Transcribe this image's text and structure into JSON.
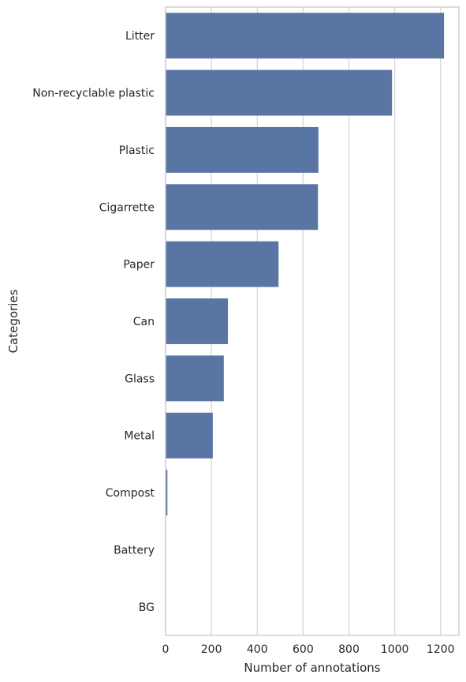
{
  "chart_data": {
    "type": "bar",
    "orientation": "horizontal",
    "title": "",
    "xlabel": "Number of annotations",
    "ylabel": "Categories",
    "categories": [
      "Litter",
      "Non-recyclable plastic",
      "Plastic",
      "Cigarrette",
      "Paper",
      "Can",
      "Glass",
      "Metal",
      "Compost",
      "Battery",
      "BG"
    ],
    "values": [
      1215,
      988,
      667,
      665,
      493,
      272,
      254,
      206,
      8,
      0,
      0
    ],
    "xlim": [
      0,
      1280
    ],
    "xticks": [
      "0",
      "200",
      "400",
      "600",
      "800",
      "1000",
      "1200"
    ],
    "grid": "vertical",
    "bar_color": "#5975a4"
  }
}
